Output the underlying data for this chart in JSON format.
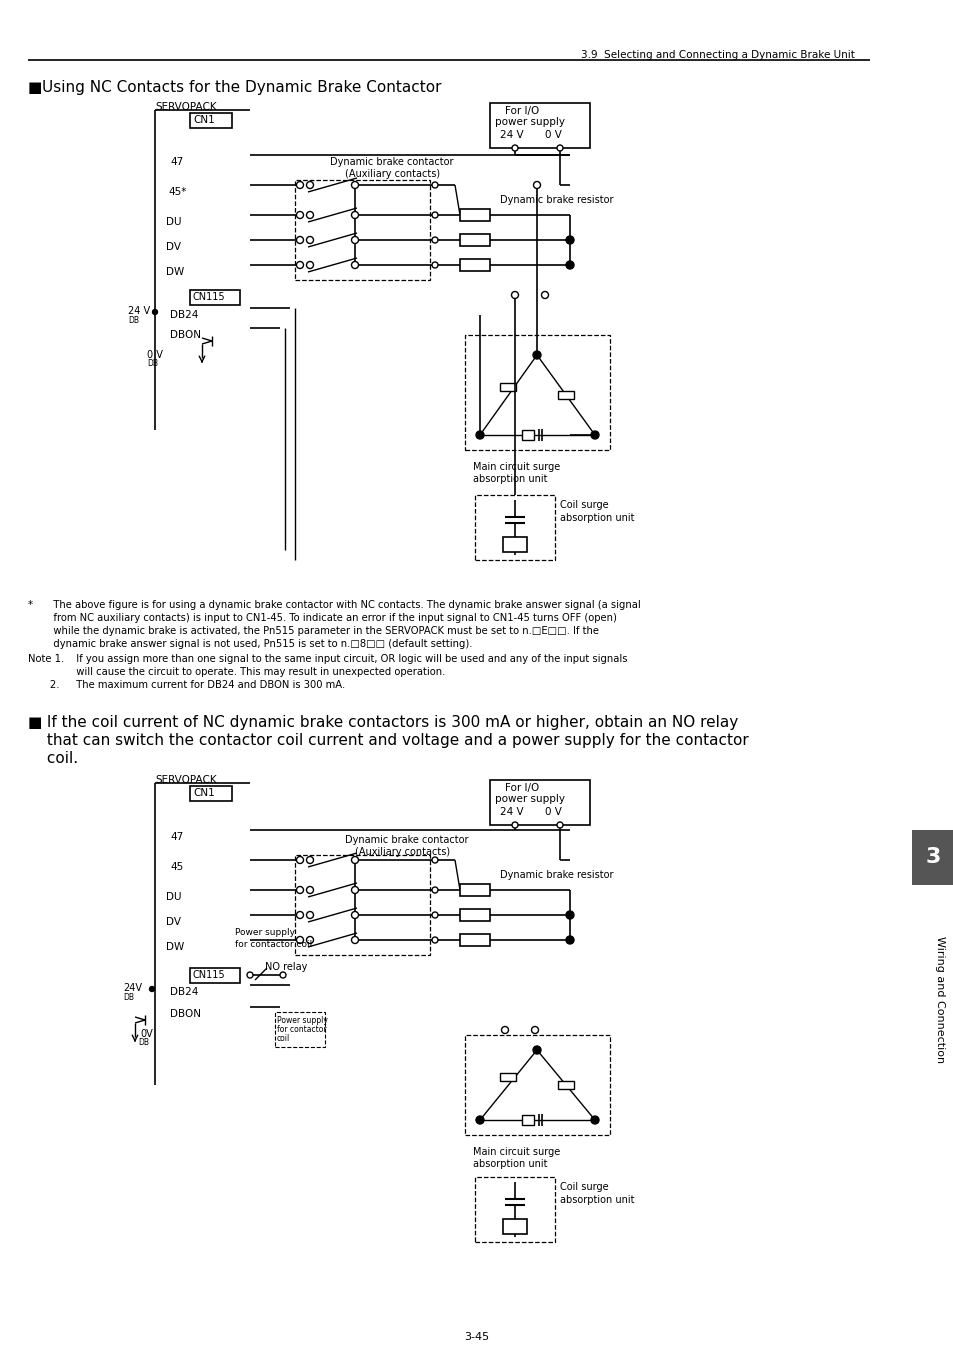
{
  "header_text": "3.9  Selecting and Connecting a Dynamic Brake Unit",
  "title1_bullet": "■",
  "title1_text": " Using NC Contacts for the Dynamic Brake Contactor",
  "title2_bullet": "■",
  "title2_text": " If the coil current of NC dynamic brake contactors is 300 mA or higher, obtain an NO relay",
  "title2_line2": "   that can switch the contactor coil current and voltage and a power supply for the contactor",
  "title2_line3": "   coil.",
  "note_star_sym": "*",
  "note_star_text": "   The above figure is for using a dynamic brake contactor with NC contacts. The dynamic brake answer signal (a signal",
  "note_star_line2": "   from NC auxiliary contacts) is input to CN1-45. To indicate an error if the input signal to CN1-45 turns OFF (open)",
  "note_star_line3": "   while the dynamic brake is activated, the Pn515 parameter in the SERVOPACK must be set to n.□E□□. If the",
  "note_star_line4": "   dynamic brake answer signal is not used, Pn515 is set to n.□8□□ (default setting).",
  "note1_label": "Note 1.",
  "note1_text": "  If you assign more than one signal to the same input circuit, OR logic will be used and any of the input signals",
  "note1_line2": "          will cause the circuit to operate. This may result in unexpected operation.",
  "note2_label": "       2.",
  "note2_text": "  The maximum current for DB24 and DBON is 300 mA.",
  "side_text": "Wiring and Connection",
  "page_num": "3-45",
  "chapter_num": "3",
  "bg_color": "#ffffff"
}
